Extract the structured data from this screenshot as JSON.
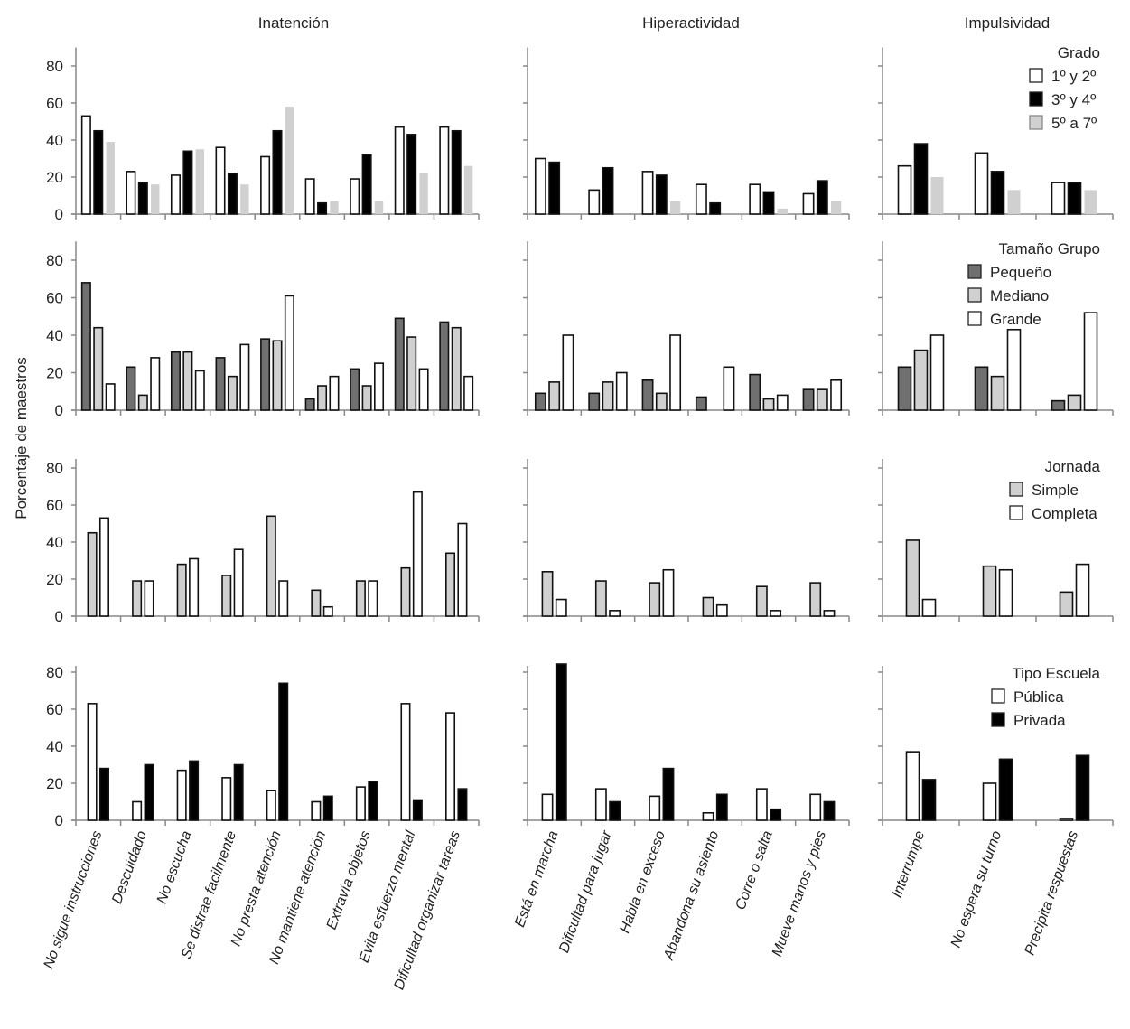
{
  "chart_data": {
    "type": "bar",
    "ylabel": "Porcentaje de maestros",
    "ylim": [
      0,
      90
    ],
    "yticks": [
      0,
      20,
      40,
      60,
      80
    ],
    "columns": [
      {
        "title": "Inatención",
        "categories": [
          "No sigue instrucciones",
          "Descuidado",
          "No escucha",
          "Se distrae facilmente",
          "No presta atención",
          "No mantiene  atención",
          "Extravía objetos",
          "Evita esfuerzo mental",
          "Dificultad organizar tareas"
        ]
      },
      {
        "title": "Hiperactividad",
        "categories": [
          "Está en marcha",
          "Dificultad para jugar",
          "Habla en exceso",
          "Abandona su asiento",
          "Corre o salta",
          "Mueve manos y pies"
        ]
      },
      {
        "title": "Impulsividad",
        "categories": [
          "Interrumpe",
          "No espera su turno",
          "Precipita respuestas"
        ]
      }
    ],
    "rows": [
      {
        "legend_title": "Grado",
        "series": [
          {
            "name": "1º y 2º",
            "color": "#ffffff"
          },
          {
            "name": "3º y 4º",
            "color": "#000000"
          },
          {
            "name": "5º a 7º",
            "color": "#d0d0d0",
            "no_border": true
          }
        ],
        "values": [
          [
            [
              53,
              23,
              21,
              36,
              31,
              19,
              19,
              47,
              47
            ],
            [
              45,
              17,
              34,
              22,
              45,
              6,
              32,
              43,
              45
            ],
            [
              39,
              16,
              35,
              16,
              58,
              7,
              7,
              22,
              26
            ]
          ],
          [
            [
              30,
              13,
              23,
              16,
              16,
              11
            ],
            [
              28,
              25,
              21,
              6,
              12,
              18
            ],
            [
              0,
              0,
              7,
              0,
              3,
              7
            ]
          ],
          [
            [
              26,
              33,
              17
            ],
            [
              38,
              23,
              17
            ],
            [
              20,
              13,
              13
            ]
          ]
        ]
      },
      {
        "legend_title": "Tamaño Grupo",
        "series": [
          {
            "name": "Pequeño",
            "color": "#707070"
          },
          {
            "name": "Mediano",
            "color": "#d0d0d0"
          },
          {
            "name": "Grande",
            "color": "#ffffff"
          }
        ],
        "values": [
          [
            [
              68,
              23,
              31,
              28,
              38,
              6,
              22,
              49,
              47
            ],
            [
              44,
              8,
              31,
              18,
              37,
              13,
              13,
              39,
              44
            ],
            [
              14,
              28,
              21,
              35,
              61,
              18,
              25,
              22,
              18
            ]
          ],
          [
            [
              9,
              9,
              16,
              7,
              19,
              11
            ],
            [
              15,
              15,
              9,
              0,
              6,
              11
            ],
            [
              40,
              20,
              40,
              23,
              8,
              16
            ]
          ],
          [
            [
              23,
              23,
              5
            ],
            [
              32,
              18,
              8
            ],
            [
              40,
              43,
              52
            ]
          ]
        ]
      },
      {
        "legend_title": "Jornada",
        "series": [
          {
            "name": "Simple",
            "color": "#d0d0d0"
          },
          {
            "name": "Completa",
            "color": "#ffffff"
          }
        ],
        "values": [
          [
            [
              45,
              19,
              28,
              22,
              54,
              14,
              19,
              26,
              34
            ],
            [
              53,
              19,
              31,
              36,
              19,
              5,
              19,
              67,
              50
            ]
          ],
          [
            [
              24,
              19,
              18,
              10,
              16,
              18
            ],
            [
              9,
              3,
              25,
              6,
              3,
              3
            ]
          ],
          [
            [
              41,
              27,
              13
            ],
            [
              9,
              25,
              28
            ]
          ]
        ]
      },
      {
        "legend_title": "Tipo Escuela",
        "series": [
          {
            "name": "Pública",
            "color": "#ffffff"
          },
          {
            "name": "Privada",
            "color": "#000000"
          }
        ],
        "values": [
          [
            [
              63,
              10,
              27,
              23,
              16,
              10,
              18,
              63,
              58
            ],
            [
              28,
              30,
              32,
              30,
              74,
              13,
              21,
              11,
              17
            ]
          ],
          [
            [
              14,
              17,
              13,
              4,
              17,
              14
            ],
            [
              88,
              10,
              28,
              14,
              6,
              10
            ]
          ],
          [
            [
              37,
              20,
              1
            ],
            [
              22,
              33,
              35
            ]
          ]
        ]
      }
    ]
  }
}
